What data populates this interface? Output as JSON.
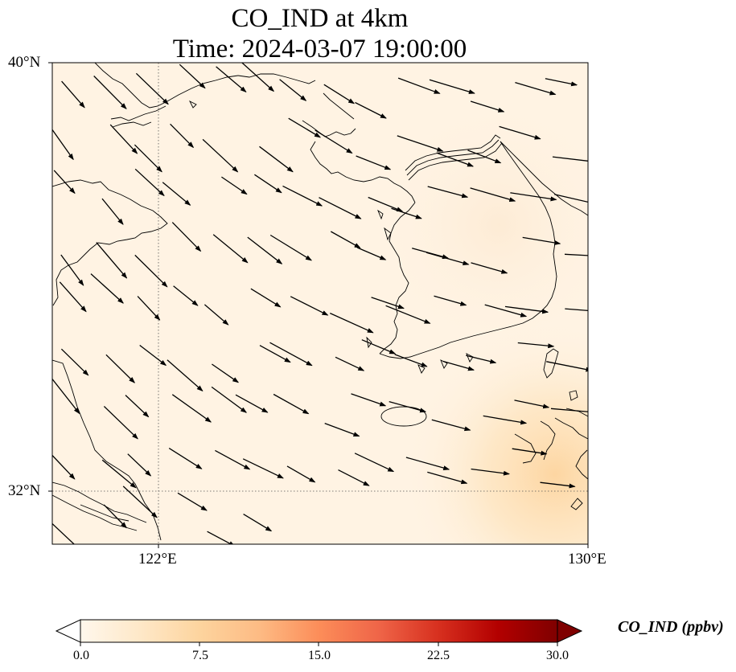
{
  "figure": {
    "title_line1": "CO_IND at 4km",
    "title_line2": "Time: 2024-03-07 19:00:00"
  },
  "axes": {
    "lat_ticks": [
      "40°N",
      "32°N"
    ],
    "lon_ticks": [
      "122°E",
      "130°E"
    ],
    "lon_range": [
      120,
      130
    ],
    "lat_range": [
      31,
      40
    ],
    "gridlines": "dotted at 122°E and 32°N"
  },
  "colorbar": {
    "label": "CO_IND (ppbv)",
    "colormap": "OrRd",
    "min": 0.0,
    "max": 30.0,
    "extend": "both",
    "ticks": [
      "0.0",
      "7.5",
      "15.0",
      "22.5",
      "30.0"
    ],
    "colors": [
      "#fff7ec",
      "#fee8c8",
      "#fdd49e",
      "#fdbb84",
      "#fc8d59",
      "#ef6548",
      "#d7301f",
      "#b30000",
      "#7f0000"
    ]
  },
  "field": {
    "background_value_ppbv": 1.0,
    "enhanced_region": "south-east corner near Kyushu, up to ~5 ppbv"
  },
  "wind_vectors": {
    "direction": "north-west to south-east flow",
    "count": 118
  }
}
